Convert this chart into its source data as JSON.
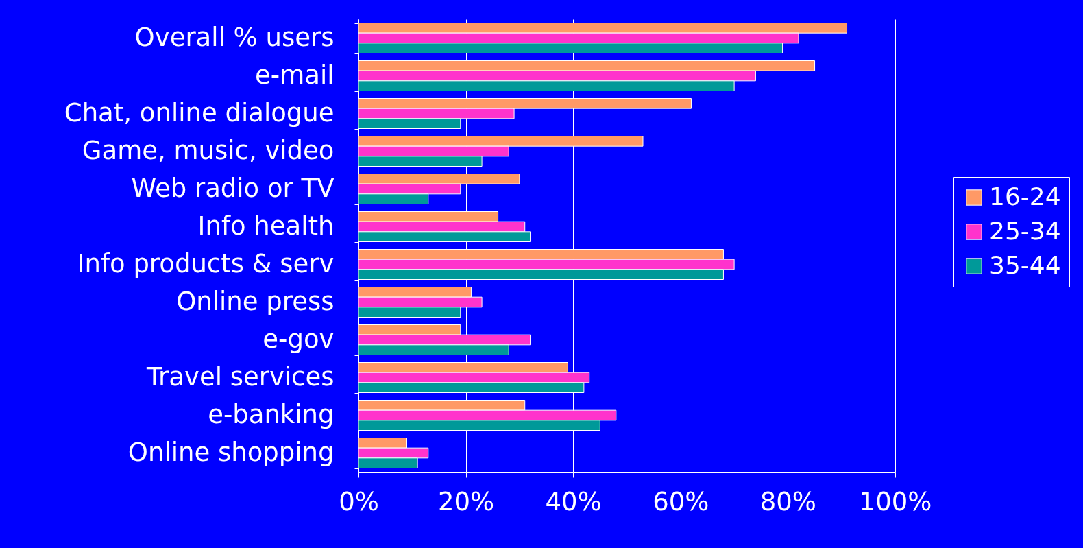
{
  "chart_data": {
    "type": "bar",
    "orientation": "horizontal",
    "categories": [
      "Overall % users",
      "e-mail",
      "Chat, online dialogue",
      "Game, music, video",
      "Web radio or TV",
      "Info health",
      "Info products & serv",
      "Online press",
      "e-gov",
      "Travel services",
      "e-banking",
      "Online shopping"
    ],
    "series": [
      {
        "name": "16-24",
        "color": "#ff9966",
        "values": [
          91,
          85,
          62,
          53,
          30,
          26,
          68,
          21,
          19,
          39,
          31,
          9
        ]
      },
      {
        "name": "25-34",
        "color": "#ff33cc",
        "values": [
          82,
          74,
          29,
          28,
          19,
          31,
          70,
          23,
          32,
          43,
          48,
          13
        ]
      },
      {
        "name": "35-44",
        "color": "#009999",
        "values": [
          79,
          70,
          19,
          23,
          13,
          32,
          68,
          19,
          28,
          42,
          45,
          11
        ]
      }
    ],
    "xlim": [
      0,
      100
    ],
    "xticks": [
      {
        "value": 0,
        "label": "0%"
      },
      {
        "value": 20,
        "label": "20%"
      },
      {
        "value": 40,
        "label": "40%"
      },
      {
        "value": 60,
        "label": "60%"
      },
      {
        "value": 80,
        "label": "80%"
      },
      {
        "value": 100,
        "label": "100%"
      }
    ],
    "grid": "x",
    "legend": "right"
  }
}
